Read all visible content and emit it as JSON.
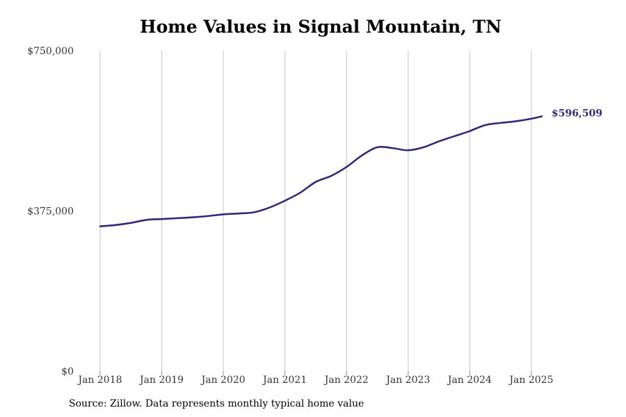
{
  "chart_data": {
    "type": "line",
    "title": "Home Values in Signal Mountain, TN",
    "xlabel": "",
    "ylabel": "",
    "ylim": [
      0,
      750000
    ],
    "yticks": [
      {
        "value": 0,
        "label": "$0"
      },
      {
        "value": 375000,
        "label": "$375,000"
      },
      {
        "value": 750000,
        "label": "$750,000"
      }
    ],
    "xticks": [
      {
        "t": 2018.0,
        "label": "Jan 2018"
      },
      {
        "t": 2019.0,
        "label": "Jan 2019"
      },
      {
        "t": 2020.0,
        "label": "Jan 2020"
      },
      {
        "t": 2021.0,
        "label": "Jan 2021"
      },
      {
        "t": 2022.0,
        "label": "Jan 2022"
      },
      {
        "t": 2023.0,
        "label": "Jan 2023"
      },
      {
        "t": 2024.0,
        "label": "Jan 2024"
      },
      {
        "t": 2025.0,
        "label": "Jan 2025"
      }
    ],
    "grid": {
      "vertical": true,
      "horizontal": false
    },
    "line_color": "#2e2a78",
    "end_label": "$596,509",
    "series": [
      {
        "x": [
          2018.0,
          2018.25,
          2018.5,
          2018.75,
          2019.0,
          2019.25,
          2019.5,
          2019.75,
          2020.0,
          2020.25,
          2020.5,
          2020.75,
          2021.0,
          2021.25,
          2021.5,
          2021.75,
          2022.0,
          2022.25,
          2022.5,
          2022.75,
          2023.0,
          2023.25,
          2023.5,
          2023.75,
          2024.0,
          2024.25,
          2024.5,
          2024.75,
          2025.0,
          2025.17
        ],
        "values": [
          339000,
          342000,
          347000,
          354000,
          356000,
          358000,
          360000,
          363000,
          367000,
          369000,
          372000,
          383000,
          399000,
          418000,
          443000,
          457000,
          478000,
          505000,
          524000,
          522000,
          517000,
          524000,
          538000,
          550000,
          562000,
          576000,
          581000,
          585000,
          591000,
          596509
        ]
      }
    ]
  },
  "source_text": "Source: Zillow. Data represents monthly typical home value"
}
